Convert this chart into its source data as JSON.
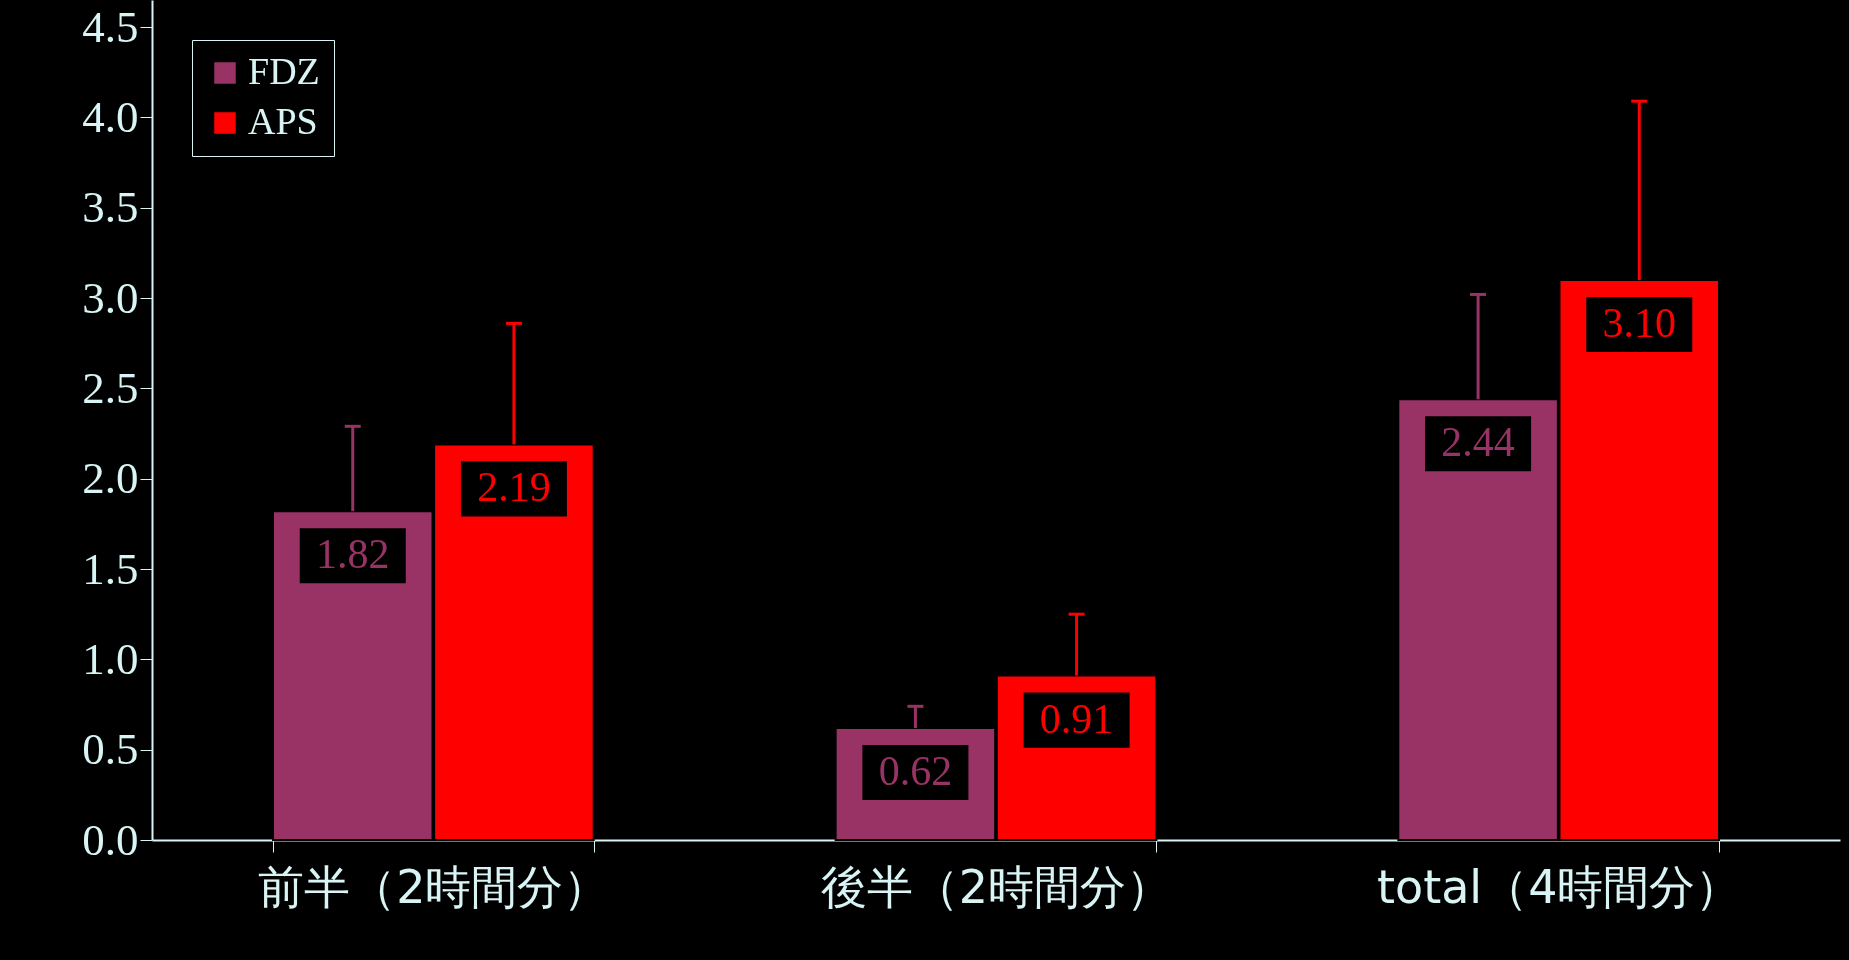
{
  "chart_data": {
    "type": "bar",
    "categories": [
      "前半（2時間分）",
      "後半（2時間分）",
      "total（4時間分）"
    ],
    "series": [
      {
        "name": "FDZ",
        "color": "#993366",
        "values": [
          1.82,
          0.62,
          2.44
        ],
        "value_labels": [
          "1.82",
          "0.62",
          "2.44"
        ],
        "errors": [
          [
            1.82,
            2.29
          ],
          [
            0.62,
            0.74
          ],
          [
            2.44,
            3.02
          ]
        ]
      },
      {
        "name": "APS",
        "color": "#ff0000",
        "values": [
          2.19,
          0.91,
          3.1
        ],
        "value_labels": [
          "2.19",
          "0.91",
          "3.10"
        ],
        "errors": [
          [
            2.19,
            2.86
          ],
          [
            0.91,
            1.25
          ],
          [
            3.1,
            4.09
          ]
        ]
      }
    ],
    "ylim": [
      0,
      4.65
    ],
    "yticks": [
      {
        "value": 0,
        "label": "0.0"
      },
      {
        "value": 0.5,
        "label": "0.5"
      },
      {
        "value": 1,
        "label": "1.0"
      },
      {
        "value": 1.5,
        "label": "1.5"
      },
      {
        "value": 2,
        "label": "2.0"
      },
      {
        "value": 2.5,
        "label": "2.5"
      },
      {
        "value": 3,
        "label": "3.0"
      },
      {
        "value": 3.5,
        "label": "3.5"
      },
      {
        "value": 4,
        "label": "4.0"
      },
      {
        "value": 4.5,
        "label": "4.5"
      }
    ],
    "grid": false,
    "legend": "top left"
  }
}
